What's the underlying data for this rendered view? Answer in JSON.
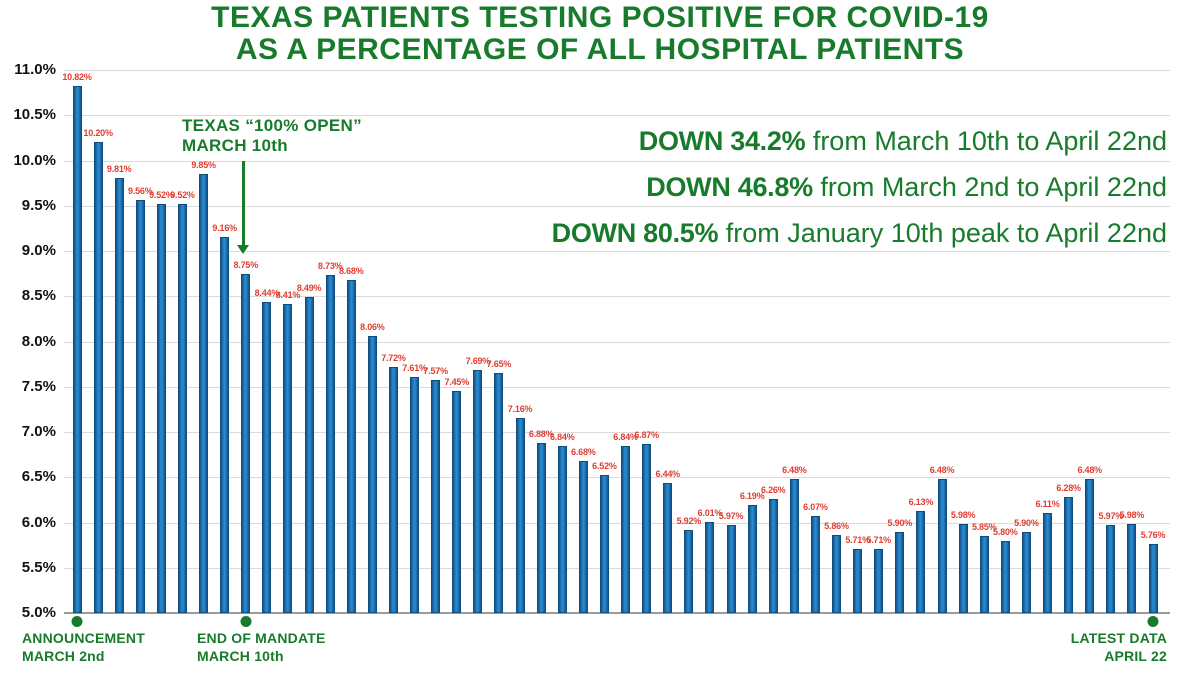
{
  "title": {
    "line1": "TEXAS PATIENTS TESTING POSITIVE FOR COVID-19",
    "line2": "AS A PERCENTAGE OF ALL HOSPITAL PATIENTS"
  },
  "colors": {
    "green": "#177B2B",
    "red": "#E13C30",
    "bar_fill": "#1F7AC0",
    "bar_border": "#0F4C7A",
    "gridline": "#DBDBDB",
    "axis_line": "#9B9B9B",
    "tick_text": "#111111"
  },
  "chart_data": {
    "type": "bar",
    "title": "TEXAS PATIENTS TESTING POSITIVE FOR COVID-19 AS A PERCENTAGE OF ALL HOSPITAL PATIENTS",
    "ylim": [
      5.0,
      11.0
    ],
    "ytick_labels": [
      "11.0%",
      "10.5%",
      "10.0%",
      "9.5%",
      "9.0%",
      "8.5%",
      "8.0%",
      "7.5%",
      "7.0%",
      "6.5%",
      "6.0%",
      "5.5%",
      "5.0%"
    ],
    "grid": true,
    "value_label_suffix": "%",
    "values": [
      10.82,
      10.2,
      9.81,
      9.56,
      9.52,
      9.52,
      9.85,
      9.16,
      8.75,
      8.44,
      8.41,
      8.49,
      8.73,
      8.68,
      8.06,
      7.72,
      7.61,
      7.57,
      7.45,
      7.69,
      7.65,
      7.16,
      6.88,
      6.84,
      6.68,
      6.52,
      6.84,
      6.87,
      6.44,
      5.92,
      6.01,
      5.97,
      6.19,
      6.26,
      6.48,
      6.07,
      5.86,
      5.71,
      5.71,
      5.9,
      6.13,
      6.48,
      5.98,
      5.85,
      5.8,
      5.9,
      6.11,
      6.28,
      6.48,
      5.97,
      5.98,
      5.76
    ]
  },
  "annotations": {
    "open_label": {
      "line1": "TEXAS “100% OPEN”",
      "line2": "MARCH 10th"
    },
    "down_lines": [
      {
        "bold": "DOWN 34.2%",
        "rest": " from March 10th to April 22nd"
      },
      {
        "bold": "DOWN 46.8%",
        "rest": " from March 2nd to April 22nd"
      },
      {
        "bold": "DOWN 80.5%",
        "rest": " from January 10th peak to April 22nd"
      }
    ],
    "markers": [
      {
        "line1": "ANNOUNCEMENT",
        "line2": "MARCH 2nd",
        "bar_index": 0
      },
      {
        "line1": "END OF MANDATE",
        "line2": "MARCH 10th",
        "bar_index": 8
      },
      {
        "line1": "LATEST DATA",
        "line2": "APRIL 22",
        "bar_index": 51
      }
    ]
  }
}
